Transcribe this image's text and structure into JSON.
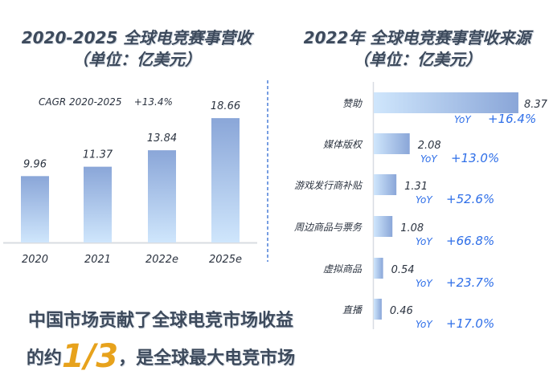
{
  "chart_data": [
    {
      "type": "bar",
      "title": "2020-2025 全球电竞赛事营收",
      "subtitle": "（单位：亿美元）",
      "annotation": "CAGR 2020-2025    +13.4%",
      "categories": [
        "2020",
        "2021",
        "2022e",
        "2025e"
      ],
      "values": [
        9.96,
        11.37,
        13.84,
        18.66
      ],
      "value_labels": [
        "9.96",
        "11.37",
        "13.84",
        "18.66"
      ],
      "grid": false
    },
    {
      "type": "bar",
      "orientation": "horizontal",
      "title": "2022年 全球电竞赛事营收来源",
      "subtitle": "（单位：亿美元）",
      "categories": [
        "赞助",
        "媒体版权",
        "游戏发行商补贴",
        "周边商品与票务",
        "虚拟商品",
        "直播"
      ],
      "values": [
        8.37,
        2.08,
        1.31,
        1.08,
        0.54,
        0.46
      ],
      "value_labels": [
        "8.37",
        "2.08",
        "1.31",
        "1.08",
        "0.54",
        "0.46"
      ],
      "yoy_label": "YoY",
      "yoy": [
        "+16.4%",
        "+13.0%",
        "+52.6%",
        "+66.8%",
        "+23.7%",
        "+17.0%"
      ],
      "grid": false
    }
  ],
  "colors": {
    "bar_top": "#8aa6d8",
    "bar_bottom": "#cfe6fc",
    "yoy": "#2f6fe8",
    "highlight": "#e7a21c",
    "divider": "#4a7fd9"
  },
  "footer": {
    "line1": "中国市场贡献了全球电竞市场收益",
    "line2_pre": "的约",
    "fraction": "1/3",
    "line2_post": "，是全球最大电竞市场"
  }
}
